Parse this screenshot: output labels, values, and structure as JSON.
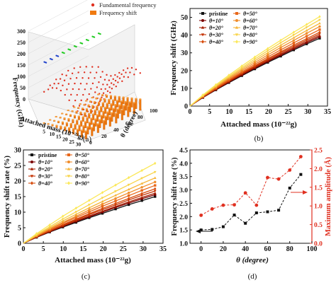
{
  "panel_labels": [
    "(a)",
    "(b)",
    "(c)",
    "(d)"
  ],
  "colors": {
    "theta_series": [
      "#111111",
      "#7a0000",
      "#a51d00",
      "#c43000",
      "#d64a0a",
      "#e8671a",
      "#f08c2a",
      "#f5b53a",
      "#f8d44a",
      "#fbe85a"
    ],
    "red_series": "#e03020",
    "black_series": "#111111",
    "bar_orange": "#f07a10",
    "green_dots": "#22cc22",
    "blue_dots": "#2244cc"
  },
  "chart_data": [
    {
      "type": "bar",
      "panel": "(a)",
      "projection": "3d",
      "zlabel": "Frequency (GHz)",
      "xlabel": "Attached mass (10⁻²²g)",
      "ylabel": "θ (degree)",
      "z_ticks": [
        "0",
        "50",
        "100",
        "150",
        "200",
        "250",
        "300"
      ],
      "x_ticks": [
        "5",
        "10",
        "15",
        "20",
        "25",
        "30"
      ],
      "y_ticks": [
        "0",
        "20",
        "40",
        "60",
        "80",
        "100"
      ],
      "zlim": [
        0,
        300
      ],
      "legend": [
        {
          "label": "Fundamental frequency",
          "marker": "dot",
          "color": "#e03020"
        },
        {
          "label": "Frequency shift",
          "marker": "bar",
          "color": "#f07a10"
        }
      ],
      "series": [
        {
          "name": "Fundamental frequency",
          "approx_range": [
            100,
            175
          ]
        },
        {
          "name": "Frequency shift",
          "approx_range": [
            0,
            50
          ]
        }
      ],
      "x_count": 11,
      "y_count": 10
    },
    {
      "type": "line",
      "panel": "(b)",
      "xlabel": "Attached mass (10⁻²²g)",
      "ylabel": "Frequency shift (GHz)",
      "xlim": [
        0,
        35
      ],
      "ylim": [
        0,
        55
      ],
      "x_ticks": [
        "0",
        "5",
        "10",
        "15",
        "20",
        "25",
        "30",
        "35"
      ],
      "y_ticks": [
        "0",
        "10",
        "20",
        "30",
        "40",
        "50"
      ],
      "x": [
        0,
        3.3,
        6.6,
        9.9,
        13.2,
        16.5,
        19.8,
        23.1,
        26.4,
        29.7,
        33
      ],
      "legend": [
        [
          "pristine",
          "θ=50°"
        ],
        [
          "θ=10°",
          "θ=60°"
        ],
        [
          "θ=20°",
          "θ=70°"
        ],
        [
          "θ=30°",
          "θ=80°"
        ],
        [
          "θ=40°",
          "θ=90°"
        ]
      ],
      "series": [
        {
          "name": "pristine",
          "values": [
            0,
            4.8,
            9.1,
            13.2,
            17.1,
            20.9,
            24.6,
            28.1,
            31.6,
            35.0,
            38.2
          ]
        },
        {
          "name": "θ=10°",
          "values": [
            0,
            4.9,
            9.3,
            13.5,
            17.5,
            21.4,
            25.1,
            28.7,
            32.2,
            35.7,
            39.0
          ]
        },
        {
          "name": "θ=20°",
          "values": [
            0,
            5.0,
            9.5,
            13.8,
            17.9,
            21.8,
            25.6,
            29.3,
            32.9,
            36.4,
            39.8
          ]
        },
        {
          "name": "θ=30°",
          "values": [
            0,
            5.1,
            9.7,
            14.1,
            18.3,
            22.3,
            26.2,
            30.0,
            33.6,
            37.2,
            40.7
          ]
        },
        {
          "name": "θ=40°",
          "values": [
            0,
            5.2,
            9.9,
            14.4,
            18.7,
            22.8,
            26.8,
            30.6,
            34.4,
            38.0,
            41.6
          ]
        },
        {
          "name": "θ=50°",
          "values": [
            0,
            5.4,
            10.3,
            14.9,
            19.3,
            23.6,
            27.7,
            31.7,
            35.6,
            39.4,
            43.1
          ]
        },
        {
          "name": "θ=60°",
          "values": [
            0,
            5.6,
            10.7,
            15.5,
            20.1,
            24.5,
            28.8,
            33.0,
            37.0,
            41.0,
            44.8
          ]
        },
        {
          "name": "θ=70°",
          "values": [
            0,
            5.8,
            11.1,
            16.1,
            20.9,
            25.5,
            30.0,
            34.3,
            38.5,
            42.6,
            46.6
          ]
        },
        {
          "name": "θ=80°",
          "values": [
            0,
            6.0,
            11.5,
            16.7,
            21.7,
            26.5,
            31.2,
            35.7,
            40.1,
            44.4,
            48.6
          ]
        },
        {
          "name": "θ=90°",
          "values": [
            0,
            6.3,
            12.0,
            17.4,
            22.6,
            27.6,
            32.4,
            37.1,
            41.6,
            46.0,
            50.4
          ]
        }
      ]
    },
    {
      "type": "line",
      "panel": "(c)",
      "xlabel": "Attached mass (10⁻²²g)",
      "ylabel": "Frequency shift rate (%)",
      "xlim": [
        0,
        35
      ],
      "ylim": [
        0,
        30
      ],
      "x_ticks": [
        "0",
        "5",
        "10",
        "15",
        "20",
        "25",
        "30",
        "35"
      ],
      "y_ticks": [
        "0",
        "5",
        "10",
        "15",
        "20",
        "25",
        "30"
      ],
      "x": [
        0,
        3.3,
        6.6,
        9.9,
        13.2,
        16.5,
        19.8,
        23.1,
        26.4,
        29.7,
        33
      ],
      "legend": [
        [
          "pristine",
          "θ=50°"
        ],
        [
          "θ=10°",
          "θ=60°"
        ],
        [
          "θ=20°",
          "θ=70°"
        ],
        [
          "θ=30°",
          "θ=80°"
        ],
        [
          "θ=40°",
          "θ=90°"
        ]
      ],
      "series": [
        {
          "name": "pristine",
          "values": [
            0,
            1.9,
            3.6,
            5.2,
            6.7,
            8.2,
            9.6,
            11.0,
            12.4,
            13.7,
            15.0
          ]
        },
        {
          "name": "θ=10°",
          "values": [
            0,
            2.0,
            3.7,
            5.4,
            7.0,
            8.5,
            10.0,
            11.5,
            12.9,
            14.3,
            15.6
          ]
        },
        {
          "name": "θ=20°",
          "values": [
            0,
            2.0,
            3.8,
            5.5,
            7.2,
            8.8,
            10.3,
            11.8,
            13.3,
            14.7,
            16.1
          ]
        },
        {
          "name": "θ=30°",
          "values": [
            0,
            2.1,
            4.0,
            5.8,
            7.5,
            9.2,
            10.8,
            12.3,
            13.9,
            15.4,
            16.8
          ]
        },
        {
          "name": "θ=40°",
          "values": [
            0,
            2.2,
            4.1,
            6.0,
            7.8,
            9.5,
            11.2,
            12.8,
            14.4,
            16.0,
            17.5
          ]
        },
        {
          "name": "θ=50°",
          "values": [
            0,
            2.3,
            4.4,
            6.4,
            8.3,
            10.1,
            11.9,
            13.6,
            15.3,
            17.0,
            18.6
          ]
        },
        {
          "name": "θ=60°",
          "values": [
            0,
            2.4,
            4.6,
            6.7,
            8.7,
            10.7,
            12.6,
            14.4,
            16.2,
            18.0,
            19.7
          ]
        },
        {
          "name": "θ=70°",
          "values": [
            0,
            2.6,
            4.9,
            7.2,
            9.3,
            11.4,
            13.4,
            15.4,
            17.3,
            19.2,
            21.0
          ]
        },
        {
          "name": "θ=80°",
          "values": [
            0,
            2.8,
            5.3,
            7.8,
            10.1,
            12.4,
            14.6,
            16.7,
            18.8,
            20.9,
            22.9
          ]
        },
        {
          "name": "θ=90°",
          "values": [
            0,
            3.1,
            5.9,
            8.7,
            11.3,
            13.8,
            16.3,
            18.7,
            21.1,
            23.4,
            25.7
          ]
        }
      ]
    },
    {
      "type": "line",
      "panel": "(d)",
      "xlabel": "θ (degree)",
      "ylabel_left": "Frequency shift rate (%)",
      "ylabel_right": "Maximum amplitude (Å)",
      "xlim": [
        -10,
        100
      ],
      "ylim_left": [
        1.0,
        4.5
      ],
      "ylim_right": [
        0,
        2.5
      ],
      "x_ticks": [
        "0",
        "20",
        "40",
        "60",
        "80",
        "100"
      ],
      "y_ticks_left": [
        "1.0",
        "1.5",
        "2.0",
        "2.5",
        "3.0",
        "3.5",
        "4.0",
        "4.5"
      ],
      "y_ticks_right": [
        "0.0",
        "0.5",
        "1.0",
        "1.5",
        "2.0",
        "2.5"
      ],
      "x": [
        0,
        10,
        20,
        30,
        40,
        50,
        60,
        70,
        80,
        90
      ],
      "series": [
        {
          "name": "Frequency shift rate",
          "axis": "left",
          "style": "black-squares-dashed",
          "values": [
            1.5,
            1.52,
            1.62,
            2.06,
            1.75,
            2.14,
            2.18,
            2.24,
            3.07,
            3.58
          ]
        },
        {
          "name": "Maximum amplitude",
          "axis": "right",
          "style": "red-circles-dashed",
          "values": [
            0.75,
            0.92,
            1.02,
            1.03,
            1.35,
            1.02,
            1.76,
            1.72,
            1.96,
            2.32
          ]
        }
      ]
    }
  ]
}
